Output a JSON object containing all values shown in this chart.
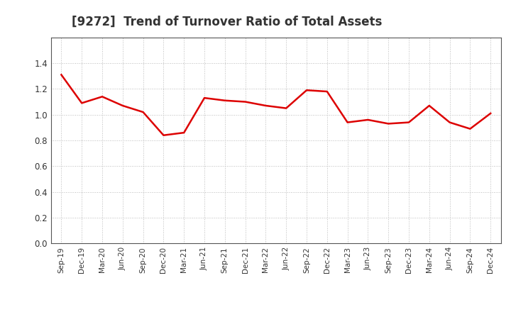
{
  "title": "[9272]  Trend of Turnover Ratio of Total Assets",
  "title_color": "#333333",
  "title_fontsize": 12,
  "line_color": "#dd0000",
  "line_width": 1.8,
  "background_color": "#ffffff",
  "grid_color": "#bbbbbb",
  "ylim": [
    0.0,
    1.6
  ],
  "yticks": [
    0.0,
    0.2,
    0.4,
    0.6,
    0.8,
    1.0,
    1.2,
    1.4
  ],
  "x_labels": [
    "Sep-19",
    "Dec-19",
    "Mar-20",
    "Jun-20",
    "Sep-20",
    "Dec-20",
    "Mar-21",
    "Jun-21",
    "Sep-21",
    "Dec-21",
    "Mar-22",
    "Jun-22",
    "Sep-22",
    "Dec-22",
    "Mar-23",
    "Jun-23",
    "Sep-23",
    "Dec-23",
    "Mar-24",
    "Jun-24",
    "Sep-24",
    "Dec-24"
  ],
  "values": [
    1.31,
    1.09,
    1.14,
    1.07,
    1.02,
    0.84,
    0.86,
    1.13,
    1.11,
    1.1,
    1.07,
    1.05,
    1.19,
    1.18,
    0.94,
    0.96,
    0.93,
    0.94,
    1.07,
    0.94,
    0.89,
    1.01
  ]
}
